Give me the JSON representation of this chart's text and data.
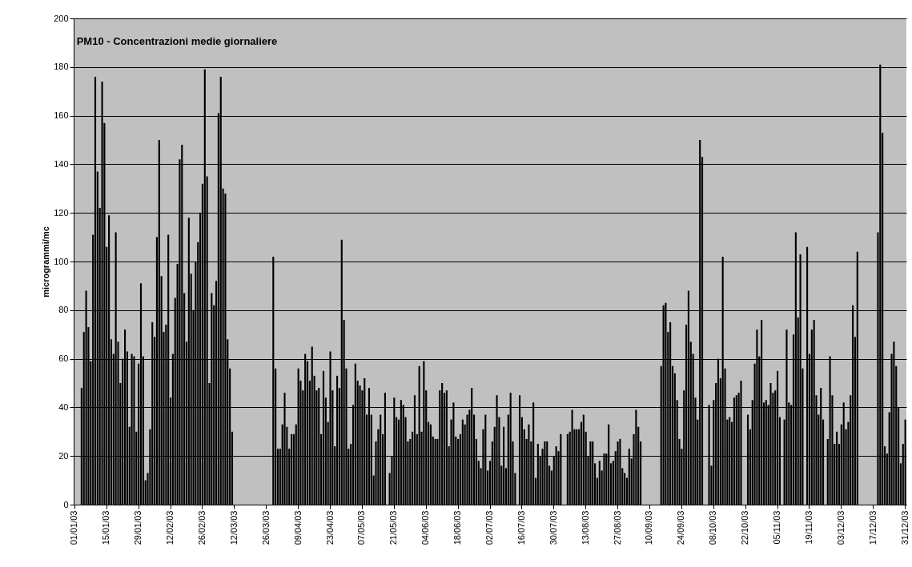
{
  "chart_data": {
    "type": "bar",
    "title": "PM10 - Concentrazioni medie giornaliere",
    "ylabel": "microgrammi/mc",
    "color": "#000000",
    "ylim": [
      0,
      200
    ],
    "yticks": [
      0,
      20,
      40,
      60,
      80,
      100,
      120,
      140,
      160,
      180,
      200
    ],
    "grid": "y",
    "categories": [
      "01/01/03",
      null,
      null,
      null,
      null,
      null,
      null,
      null,
      null,
      null,
      null,
      null,
      null,
      null,
      "15/01/03",
      null,
      null,
      null,
      null,
      null,
      null,
      null,
      null,
      null,
      null,
      null,
      null,
      null,
      "29/01/03",
      null,
      null,
      null,
      null,
      null,
      null,
      null,
      null,
      null,
      null,
      null,
      null,
      null,
      "12/02/03",
      null,
      null,
      null,
      null,
      null,
      null,
      null,
      null,
      null,
      null,
      null,
      null,
      null,
      "26/02/03",
      null,
      null,
      null,
      null,
      null,
      null,
      null,
      null,
      null,
      null,
      null,
      null,
      null,
      "12/03/03",
      null,
      null,
      null,
      null,
      null,
      null,
      null,
      null,
      null,
      null,
      null,
      null,
      null,
      "26/03/03",
      null,
      null,
      null,
      null,
      null,
      null,
      null,
      null,
      null,
      null,
      null,
      null,
      null,
      "09/04/03",
      null,
      null,
      null,
      null,
      null,
      null,
      null,
      null,
      null,
      null,
      null,
      null,
      null,
      "23/04/03",
      null,
      null,
      null,
      null,
      null,
      null,
      null,
      null,
      null,
      null,
      null,
      null,
      null,
      "07/05/03",
      null,
      null,
      null,
      null,
      null,
      null,
      null,
      null,
      null,
      null,
      null,
      null,
      null,
      "21/05/03",
      null,
      null,
      null,
      null,
      null,
      null,
      null,
      null,
      null,
      null,
      null,
      null,
      null,
      "04/06/03",
      null,
      null,
      null,
      null,
      null,
      null,
      null,
      null,
      null,
      null,
      null,
      null,
      null,
      "18/06/03",
      null,
      null,
      null,
      null,
      null,
      null,
      null,
      null,
      null,
      null,
      null,
      null,
      null,
      "02/07/03",
      null,
      null,
      null,
      null,
      null,
      null,
      null,
      null,
      null,
      null,
      null,
      null,
      null,
      "16/07/03",
      null,
      null,
      null,
      null,
      null,
      null,
      null,
      null,
      null,
      null,
      null,
      null,
      null,
      "30/07/03",
      null,
      null,
      null,
      null,
      null,
      null,
      null,
      null,
      null,
      null,
      null,
      null,
      null,
      "13/08/03",
      null,
      null,
      null,
      null,
      null,
      null,
      null,
      null,
      null,
      null,
      null,
      null,
      null,
      "27/08/03",
      null,
      null,
      null,
      null,
      null,
      null,
      null,
      null,
      null,
      null,
      null,
      null,
      null,
      "10/09/03",
      null,
      null,
      null,
      null,
      null,
      null,
      null,
      null,
      null,
      null,
      null,
      null,
      null,
      "24/09/03",
      null,
      null,
      null,
      null,
      null,
      null,
      null,
      null,
      null,
      null,
      null,
      null,
      null,
      "08/10/03",
      null,
      null,
      null,
      null,
      null,
      null,
      null,
      null,
      null,
      null,
      null,
      null,
      null,
      "22/10/03",
      null,
      null,
      null,
      null,
      null,
      null,
      null,
      null,
      null,
      null,
      null,
      null,
      null,
      "05/11/03",
      null,
      null,
      null,
      null,
      null,
      null,
      null,
      null,
      null,
      null,
      null,
      null,
      null,
      "19/11/03",
      null,
      null,
      null,
      null,
      null,
      null,
      null,
      null,
      null,
      null,
      null,
      null,
      null,
      "03/12/03",
      null,
      null,
      null,
      null,
      null,
      null,
      null,
      null,
      null,
      null,
      null,
      null,
      null,
      "17/12/03",
      null,
      null,
      null,
      null,
      null,
      null,
      null,
      null,
      null,
      null,
      null,
      null,
      null,
      "31/12/03"
    ],
    "values": [
      null,
      null,
      null,
      48,
      71,
      88,
      73,
      59,
      111,
      176,
      137,
      122,
      174,
      157,
      106,
      119,
      68,
      62,
      112,
      67,
      50,
      60,
      72,
      63,
      32,
      62,
      61,
      30,
      58,
      91,
      61,
      10,
      13,
      31,
      75,
      69,
      110,
      150,
      94,
      71,
      74,
      111,
      44,
      62,
      85,
      99,
      142,
      148,
      87,
      67,
      118,
      95,
      80,
      100,
      108,
      120,
      132,
      179,
      135,
      50,
      87,
      82,
      92,
      161,
      176,
      130,
      128,
      68,
      56,
      30,
      null,
      null,
      null,
      null,
      null,
      null,
      null,
      null,
      null,
      null,
      null,
      null,
      null,
      null,
      null,
      null,
      null,
      102,
      56,
      23,
      23,
      33,
      46,
      32,
      23,
      29,
      29,
      33,
      56,
      51,
      47,
      62,
      59,
      51,
      65,
      53,
      47,
      48,
      29,
      55,
      44,
      34,
      63,
      47,
      24,
      53,
      48,
      109,
      76,
      56,
      23,
      25,
      41,
      58,
      51,
      49,
      47,
      52,
      37,
      48,
      37,
      12,
      26,
      31,
      37,
      29,
      46,
      null,
      13,
      20,
      44,
      36,
      35,
      43,
      41,
      36,
      26,
      27,
      30,
      45,
      29,
      57,
      30,
      59,
      47,
      34,
      33,
      28,
      27,
      27,
      47,
      50,
      46,
      47,
      24,
      35,
      42,
      28,
      27,
      29,
      35,
      33,
      37,
      39,
      48,
      37,
      27,
      18,
      15,
      31,
      37,
      14,
      18,
      26,
      32,
      45,
      36,
      16,
      32,
      15,
      37,
      46,
      26,
      13,
      null,
      45,
      36,
      31,
      27,
      33,
      26,
      42,
      11,
      25,
      20,
      23,
      26,
      26,
      16,
      14,
      20,
      24,
      22,
      29,
      null,
      null,
      29,
      30,
      39,
      31,
      31,
      31,
      34,
      37,
      30,
      20,
      26,
      26,
      17,
      11,
      18,
      14,
      21,
      21,
      33,
      17,
      18,
      22,
      26,
      27,
      15,
      13,
      11,
      23,
      19,
      29,
      39,
      32,
      26,
      null,
      null,
      null,
      null,
      null,
      null,
      null,
      null,
      57,
      82,
      83,
      71,
      75,
      57,
      54,
      43,
      27,
      23,
      47,
      74,
      88,
      67,
      62,
      44,
      35,
      150,
      143,
      null,
      null,
      41,
      16,
      43,
      50,
      60,
      52,
      102,
      56,
      35,
      36,
      34,
      44,
      45,
      46,
      51,
      null,
      null,
      37,
      31,
      43,
      58,
      72,
      61,
      76,
      42,
      43,
      41,
      50,
      46,
      47,
      55,
      36,
      null,
      35,
      72,
      42,
      41,
      70,
      112,
      77,
      103,
      56,
      null,
      106,
      62,
      72,
      76,
      45,
      37,
      48,
      35,
      null,
      27,
      61,
      45,
      25,
      30,
      25,
      33,
      42,
      31,
      34,
      45,
      82,
      69,
      104,
      null,
      null,
      null,
      null,
      null,
      null,
      null,
      null,
      112,
      181,
      153,
      24,
      21,
      38,
      62,
      67,
      57,
      40,
      17,
      25,
      35
    ]
  }
}
